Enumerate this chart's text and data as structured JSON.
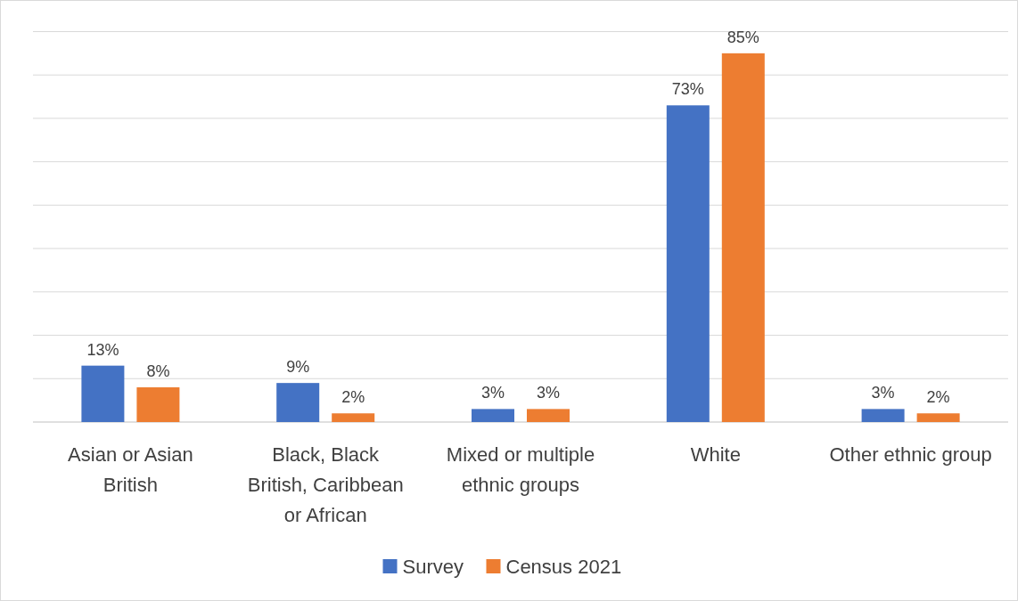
{
  "chart_data": {
    "type": "bar",
    "categories": [
      "Asian or Asian British",
      "Black, Black British, Caribbean or African",
      "Mixed or multiple ethnic groups",
      "White",
      "Other ethnic group"
    ],
    "series": [
      {
        "name": "Survey",
        "color": "#4472c4",
        "values": [
          13,
          9,
          3,
          73,
          3
        ],
        "value_labels": [
          "13%",
          "9%",
          "3%",
          "73%",
          "3%"
        ]
      },
      {
        "name": "Census 2021",
        "color": "#ed7d31",
        "values": [
          8,
          2,
          3,
          85,
          2
        ],
        "value_labels": [
          "8%",
          "2%",
          "3%",
          "85%",
          "2%"
        ]
      }
    ],
    "tick_labels": "x",
    "grid": "y",
    "legend": "bottom"
  }
}
